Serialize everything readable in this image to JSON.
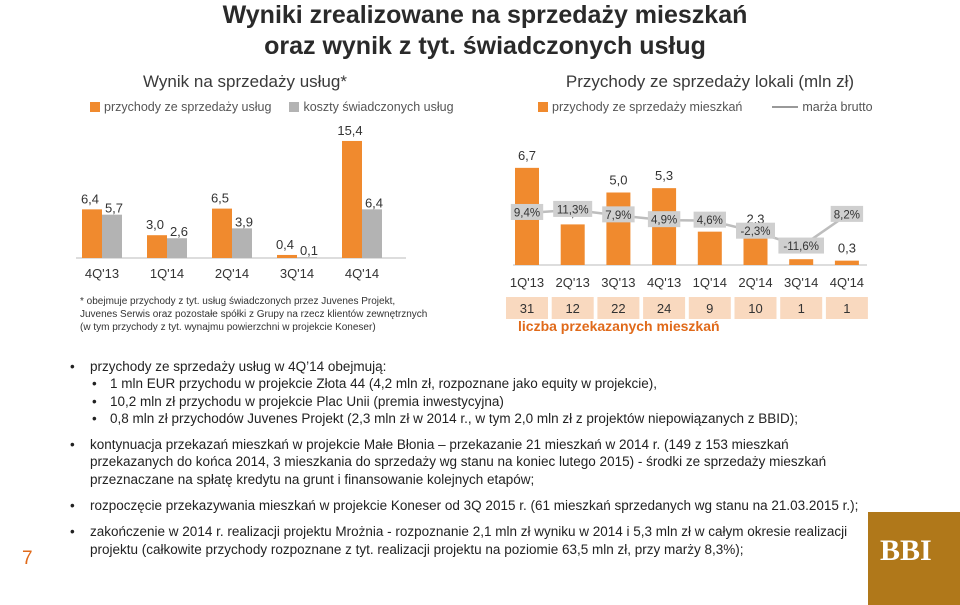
{
  "title_lines": [
    "Wyniki zrealizowane na sprzedaży mieszkań",
    "oraz wynik z tyt. świadczonych usług"
  ],
  "colors": {
    "orange": "#f08a2e",
    "gray": "#b3b3b3",
    "accent": "#e06a1a",
    "text": "#333333"
  },
  "left_chart": {
    "footnote_lines": [
      "* obejmuje przychody z tyt. usług świadczonych przez Juvenes Projekt,",
      "Juvenes Serwis oraz pozostałe spółki z Grupy na rzecz klientów zewnętrznych",
      "(w tym przychody z tyt. wynajmu powierzchni w projekcie Koneser)"
    ]
  },
  "right_chart": {
    "count_title": "liczba przekazanych mieszkań",
    "counts": [
      "31",
      "12",
      "22",
      "24",
      "9",
      "10",
      "1",
      "1"
    ]
  },
  "chart_data": [
    {
      "type": "bar",
      "title": "Wynik na sprzedaży usług*",
      "categories": [
        "4Q'13",
        "1Q'14",
        "2Q'14",
        "3Q'14",
        "4Q'14"
      ],
      "series": [
        {
          "name": "przychody ze sprzedaży usług",
          "values": [
            6.4,
            3.0,
            6.5,
            0.4,
            15.4
          ],
          "labels": [
            "6,4",
            "3,0",
            "6,5",
            "0,4",
            "15,4"
          ]
        },
        {
          "name": "koszty świadczonych usług",
          "values": [
            5.7,
            2.6,
            3.9,
            0.1,
            6.4
          ],
          "labels": [
            "5,7",
            "2,6",
            "3,9",
            "0,1",
            "6,4"
          ]
        }
      ]
    },
    {
      "type": "bar",
      "title": "Przychody ze sprzedaży lokali (mln zł)",
      "categories": [
        "1Q'13",
        "2Q'13",
        "3Q'13",
        "4Q'13",
        "1Q'14",
        "2Q'14",
        "3Q'14",
        "4Q'14"
      ],
      "series": [
        {
          "name": "przychody ze sprzedaży mieszkań",
          "values": [
            6.7,
            2.8,
            5.0,
            5.3,
            2.3,
            2.3,
            0.4,
            0.3
          ],
          "labels": [
            "6,7",
            "2,8",
            "5,0",
            "5,3",
            "2,3",
            "2,3",
            "0,4",
            "0,3"
          ]
        },
        {
          "name": "marża brutto",
          "values": [
            9.4,
            11.3,
            7.9,
            4.9,
            4.6,
            -2.3,
            -11.6,
            8.2
          ],
          "labels": [
            "9,4%",
            "11,3%",
            "7,9%",
            "4,9%",
            "4,6%",
            "-2,3%",
            "-11,6%",
            "8,2%"
          ]
        }
      ]
    }
  ],
  "bullets": [
    {
      "text": "przychody ze sprzedaży usług w 4Q’14 obejmują:",
      "sub": [
        "1 mln EUR przychodu w projekcie Złota 44 (4,2 mln zł, rozpoznane jako equity w projekcie),",
        "10,2 mln zł przychodu w projekcie Plac Unii (premia inwestycyjna)",
        "0,8 mln zł przychodów Juvenes Projekt (2,3 mln zł w 2014 r., w tym 2,0 mln zł  z projektów niepowiązanych z BBID);"
      ]
    },
    {
      "text": "kontynuacja przekazań mieszkań w projekcie Małe Błonia – przekazanie 21 mieszkań w 2014 r. (149 z 153 mieszkań przekazanych do końca 2014, 3 mieszkania do sprzedaży wg stanu na koniec lutego 2015) - środki ze sprzedaży mieszkań przeznaczane na spłatę kredytu na grunt i finansowanie kolejnych etapów;",
      "sub": []
    },
    {
      "text": "rozpoczęcie przekazywania mieszkań w projekcie Koneser od 3Q 2015 r. (61 mieszkań sprzedanych wg stanu na 21.03.2015 r.);",
      "sub": []
    },
    {
      "text": "zakończenie w 2014 r. realizacji projektu Mrożnia - rozpoznanie 2,1 mln zł wyniku w 2014 i 5,3 mln zł w całym okresie realizacji projektu (całkowite przychody rozpoznane z tyt. realizacji projektu na poziomie 63,5 mln zł, przy marży 8,3%);",
      "sub": []
    }
  ],
  "page_number": "7",
  "logo_text": "BBI"
}
